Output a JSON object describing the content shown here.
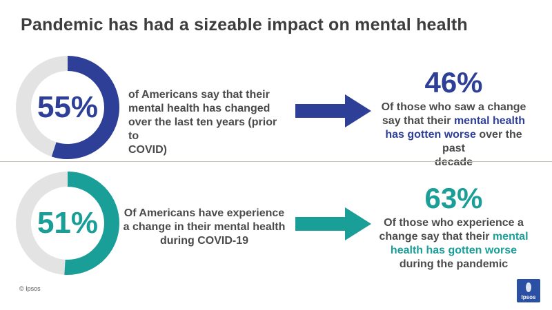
{
  "title": "Pandemic has had a sizeable impact on mental health",
  "colors": {
    "row1": "#2e3f97",
    "row2": "#1a9e98",
    "track": "#e3e3e3"
  },
  "chart_data": [
    {
      "type": "pie",
      "variant": "donut",
      "label": "55%",
      "value": 55,
      "max": 100,
      "description": [
        "of Americans say that their",
        "mental health has changed",
        "over the last ten years (prior to",
        "COVID)"
      ],
      "result": {
        "value": "46%",
        "lines": [
          [
            {
              "t": "Of those who saw a change",
              "h": false
            }
          ],
          [
            {
              "t": "say that their ",
              "h": false
            },
            {
              "t": "mental health",
              "h": true
            }
          ],
          [
            {
              "t": "has gotten worse",
              "h": true
            },
            {
              "t": " over the past",
              "h": false
            }
          ],
          [
            {
              "t": "decade",
              "h": false
            }
          ]
        ]
      }
    },
    {
      "type": "pie",
      "variant": "donut",
      "label": "51%",
      "value": 51,
      "max": 100,
      "description": [
        "Of Americans have experience",
        "a change in their mental health",
        "during COVID-19"
      ],
      "result": {
        "value": "63%",
        "lines": [
          [
            {
              "t": "Of those who experience a",
              "h": false
            }
          ],
          [
            {
              "t": "change say that their ",
              "h": false
            },
            {
              "t": "mental",
              "h": true
            }
          ],
          [
            {
              "t": "health has gotten worse",
              "h": true
            }
          ],
          [
            {
              "t": "during the pandemic",
              "h": false
            }
          ]
        ]
      }
    }
  ],
  "footer": {
    "copyright": "© Ipsos",
    "logo_text": "Ipsos"
  }
}
